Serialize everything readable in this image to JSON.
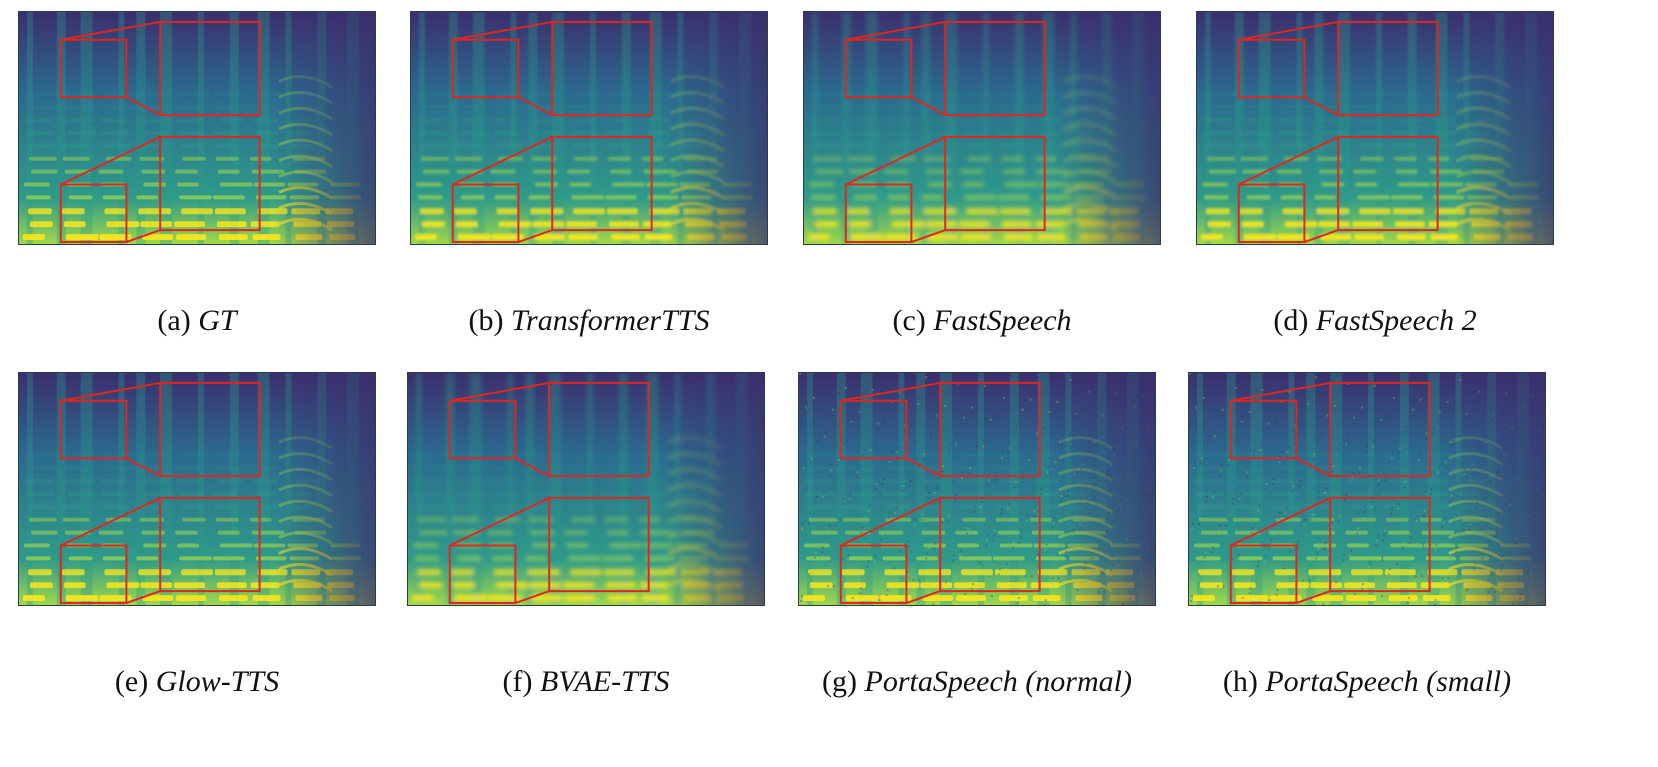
{
  "figure": {
    "panels": [
      {
        "letter": "(a)",
        "name": "GT",
        "zoom_boxes": "red-inset-zoom",
        "style": "sharp"
      },
      {
        "letter": "(b)",
        "name": "TransformerTTS",
        "zoom_boxes": "red-inset-zoom",
        "style": "smooth"
      },
      {
        "letter": "(c)",
        "name": "FastSpeech",
        "zoom_boxes": "red-inset-zoom",
        "style": "blurry"
      },
      {
        "letter": "(d)",
        "name": "FastSpeech 2",
        "zoom_boxes": "red-inset-zoom",
        "style": "smooth"
      },
      {
        "letter": "(e)",
        "name": "Glow-TTS",
        "zoom_boxes": "red-inset-zoom",
        "style": "sharp"
      },
      {
        "letter": "(f)",
        "name": "BVAE-TTS",
        "zoom_boxes": "red-inset-zoom",
        "style": "blurry"
      },
      {
        "letter": "(g)",
        "name": "PortaSpeech (normal)",
        "zoom_boxes": "red-inset-zoom",
        "style": "noisy"
      },
      {
        "letter": "(h)",
        "name": "PortaSpeech (small)",
        "zoom_boxes": "red-inset-zoom",
        "style": "noisy"
      }
    ],
    "colors": {
      "background": "#2b6a8e",
      "dark": "#3b2f6e",
      "mid": "#2f9a8a",
      "bright": "#9fd84a",
      "peak": "#f5e61f",
      "zoom_box": "#e0261f"
    }
  }
}
